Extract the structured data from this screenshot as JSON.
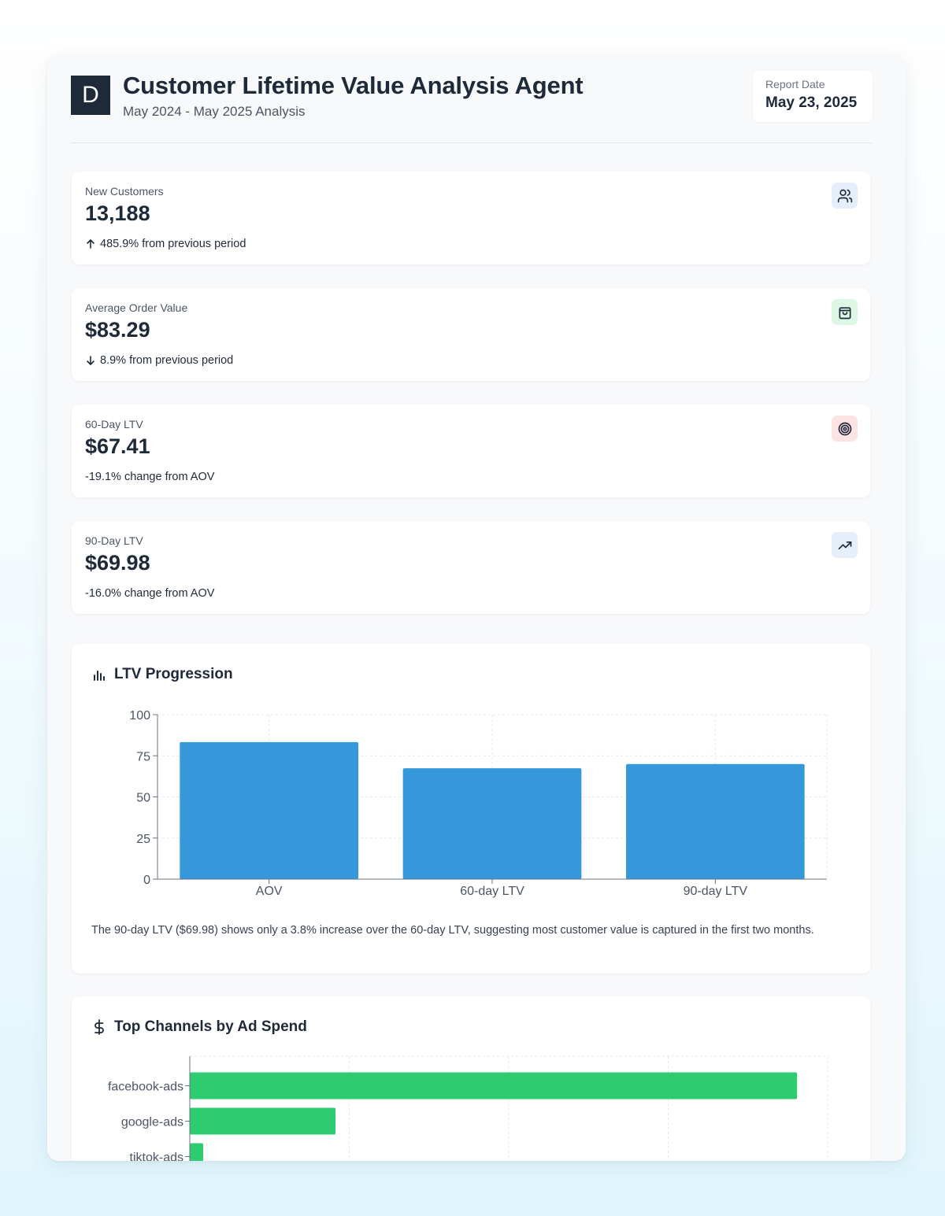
{
  "header": {
    "logo_letter": "D",
    "title": "Customer Lifetime Value Analysis Agent",
    "subtitle": "May 2024 - May 2025 Analysis",
    "report_date_label": "Report Date",
    "report_date": "May 23, 2025"
  },
  "metrics": [
    {
      "label": "New Customers",
      "value": "13,188",
      "change": "485.9% from previous period",
      "direction": "up",
      "icon": "users-icon",
      "icon_bg": "#e6eefb",
      "icon_color": "#1e2939"
    },
    {
      "label": "Average Order Value",
      "value": "$83.29",
      "change": "8.9% from previous period",
      "direction": "down",
      "icon": "shopping-bag-icon",
      "icon_bg": "#dcf7e4",
      "icon_color": "#1e2939"
    },
    {
      "label": "60-Day LTV",
      "value": "$67.41",
      "change": "-19.1% change from AOV",
      "direction": "none",
      "icon": "target-icon",
      "icon_bg": "#fde3e3",
      "icon_color": "#1e2939"
    },
    {
      "label": "90-Day LTV",
      "value": "$69.98",
      "change": "-16.0% change from AOV",
      "direction": "none",
      "icon": "trending-up-icon",
      "icon_bg": "#e6eefb",
      "icon_color": "#1e2939"
    }
  ],
  "ltv_section": {
    "title": "LTV Progression",
    "icon": "bar-chart-icon",
    "insight": "The 90-day LTV ($69.98) shows only a 3.8% increase over the 60-day LTV, suggesting most customer value is captured in the first two months."
  },
  "channels_section": {
    "title": "Top Channels by Ad Spend",
    "icon": "dollar-icon"
  },
  "chart_data": [
    {
      "type": "bar",
      "title": "",
      "categories": [
        "AOV",
        "60-day LTV",
        "90-day LTV"
      ],
      "values": [
        83.29,
        67.41,
        69.98
      ],
      "ylim": [
        0,
        100
      ],
      "yticks": [
        0,
        25,
        50,
        75,
        100
      ],
      "grid": true,
      "color": "#3498db"
    },
    {
      "type": "bar",
      "orientation": "horizontal",
      "title": "",
      "categories": [
        "facebook-ads",
        "google-ads",
        "tiktok-ads"
      ],
      "values": [
        1.0,
        0.24,
        0.022
      ],
      "grid": true,
      "color": "#2ecc71"
    }
  ]
}
